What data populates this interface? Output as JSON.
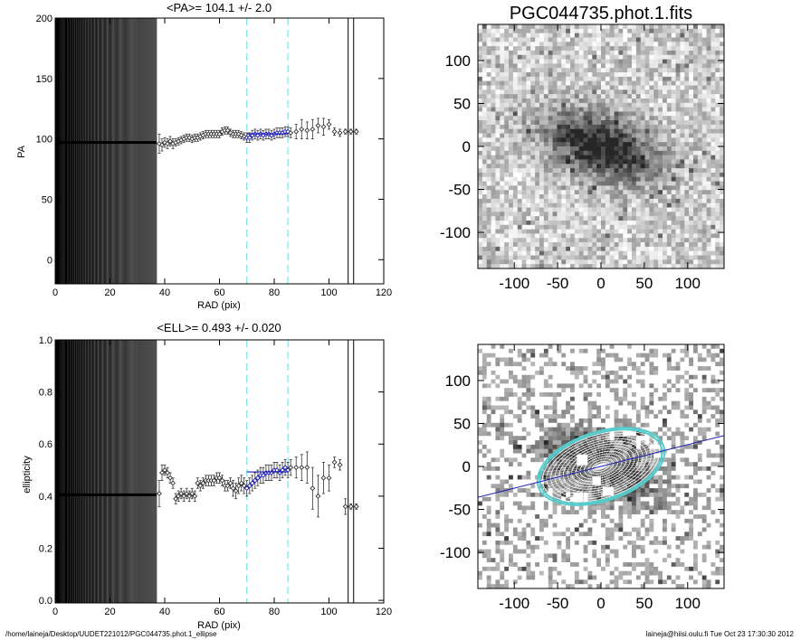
{
  "footer": {
    "path": "/home/laineja/Desktop/UUDET221012/PGC044735.phot.1_ellipse",
    "user_time": "laineja@hiisi.oulu.fi  Tue Oct 23 17:30:30 2012"
  },
  "colors": {
    "fit_line": "#1a1ab4",
    "fit_range": "#66dddd",
    "markers": "#555555",
    "ellipse_outer": "#55cccc"
  },
  "images": {
    "title": "PGC044735.phot.1.fits",
    "x_ticks": [
      -100,
      -50,
      0,
      50,
      100
    ],
    "y_ticks": [
      -100,
      -50,
      0,
      50,
      100
    ],
    "range": [
      -142,
      142
    ]
  },
  "chart_data": [
    {
      "type": "scatter",
      "title": "<PA>= 104.1 +/-   2.0",
      "xlabel": "RAD (pix)",
      "ylabel": "PA",
      "xlim": [
        0,
        120
      ],
      "ylim": [
        -20,
        200
      ],
      "x_ticks": [
        0,
        20,
        40,
        60,
        80,
        100,
        120
      ],
      "y_ticks": [
        0,
        50,
        100,
        150,
        200
      ],
      "fit_range": [
        70,
        85
      ],
      "mean_value": 104.1,
      "outer_lines": [
        107,
        109
      ],
      "inner_level": 97,
      "points": [
        {
          "x": 38,
          "y": 96,
          "e": 8
        },
        {
          "x": 39,
          "y": 95,
          "e": 5
        },
        {
          "x": 40,
          "y": 97,
          "e": 4
        },
        {
          "x": 41,
          "y": 96,
          "e": 4
        },
        {
          "x": 42,
          "y": 98,
          "e": 4
        },
        {
          "x": 43,
          "y": 96,
          "e": 4
        },
        {
          "x": 44,
          "y": 97,
          "e": 3
        },
        {
          "x": 45,
          "y": 98,
          "e": 3
        },
        {
          "x": 46,
          "y": 99,
          "e": 3
        },
        {
          "x": 47,
          "y": 100,
          "e": 3
        },
        {
          "x": 48,
          "y": 101,
          "e": 3
        },
        {
          "x": 49,
          "y": 101,
          "e": 3
        },
        {
          "x": 50,
          "y": 100,
          "e": 3
        },
        {
          "x": 51,
          "y": 101,
          "e": 3
        },
        {
          "x": 52,
          "y": 101,
          "e": 3
        },
        {
          "x": 53,
          "y": 102,
          "e": 3
        },
        {
          "x": 54,
          "y": 103,
          "e": 3
        },
        {
          "x": 55,
          "y": 104,
          "e": 3
        },
        {
          "x": 56,
          "y": 104,
          "e": 3
        },
        {
          "x": 57,
          "y": 104,
          "e": 3
        },
        {
          "x": 58,
          "y": 104,
          "e": 3
        },
        {
          "x": 59,
          "y": 104,
          "e": 3
        },
        {
          "x": 60,
          "y": 104,
          "e": 3
        },
        {
          "x": 61,
          "y": 106,
          "e": 3
        },
        {
          "x": 62,
          "y": 107,
          "e": 3
        },
        {
          "x": 63,
          "y": 107,
          "e": 3
        },
        {
          "x": 64,
          "y": 105,
          "e": 3
        },
        {
          "x": 65,
          "y": 104,
          "e": 3
        },
        {
          "x": 66,
          "y": 104,
          "e": 3
        },
        {
          "x": 67,
          "y": 104,
          "e": 3
        },
        {
          "x": 68,
          "y": 103,
          "e": 3
        },
        {
          "x": 69,
          "y": 102,
          "e": 3
        },
        {
          "x": 70,
          "y": 101,
          "e": 4
        },
        {
          "x": 71,
          "y": 101,
          "e": 4
        },
        {
          "x": 72,
          "y": 103,
          "e": 4
        },
        {
          "x": 73,
          "y": 104,
          "e": 4
        },
        {
          "x": 74,
          "y": 103,
          "e": 4
        },
        {
          "x": 75,
          "y": 104,
          "e": 4
        },
        {
          "x": 76,
          "y": 103,
          "e": 4
        },
        {
          "x": 77,
          "y": 104,
          "e": 4
        },
        {
          "x": 78,
          "y": 104,
          "e": 4
        },
        {
          "x": 79,
          "y": 103,
          "e": 4
        },
        {
          "x": 80,
          "y": 104,
          "e": 4
        },
        {
          "x": 81,
          "y": 105,
          "e": 4
        },
        {
          "x": 82,
          "y": 105,
          "e": 4
        },
        {
          "x": 83,
          "y": 105,
          "e": 4
        },
        {
          "x": 84,
          "y": 106,
          "e": 4
        },
        {
          "x": 85,
          "y": 106,
          "e": 4
        },
        {
          "x": 86,
          "y": 105,
          "e": 4
        },
        {
          "x": 88,
          "y": 106,
          "e": 6
        },
        {
          "x": 90,
          "y": 108,
          "e": 8
        },
        {
          "x": 92,
          "y": 107,
          "e": 7
        },
        {
          "x": 94,
          "y": 108,
          "e": 8
        },
        {
          "x": 96,
          "y": 111,
          "e": 6
        },
        {
          "x": 98,
          "y": 110,
          "e": 7
        },
        {
          "x": 100,
          "y": 112,
          "e": 4
        },
        {
          "x": 102,
          "y": 106,
          "e": 3
        },
        {
          "x": 104,
          "y": 105,
          "e": 3
        },
        {
          "x": 106,
          "y": 106,
          "e": 2
        },
        {
          "x": 108,
          "y": 106,
          "e": 2
        },
        {
          "x": 110,
          "y": 106,
          "e": 2
        }
      ]
    },
    {
      "type": "scatter",
      "title": "<ELL>= 0.493 +/-  0.020",
      "xlabel": "RAD (pix)",
      "ylabel": "ellipticity",
      "xlim": [
        0,
        120
      ],
      "ylim": [
        -0.01,
        1.0
      ],
      "x_ticks": [
        0,
        20,
        40,
        60,
        80,
        100,
        120
      ],
      "y_ticks": [
        0.0,
        0.2,
        0.4,
        0.6,
        0.8,
        1.0
      ],
      "fit_range": [
        70,
        85
      ],
      "mean_value": 0.493,
      "outer_lines": [
        107,
        109
      ],
      "inner_level": 0.405,
      "points": [
        {
          "x": 38,
          "y": 0.41,
          "e": 0.05
        },
        {
          "x": 39,
          "y": 0.49,
          "e": 0.03
        },
        {
          "x": 40,
          "y": 0.5,
          "e": 0.02
        },
        {
          "x": 41,
          "y": 0.49,
          "e": 0.02
        },
        {
          "x": 42,
          "y": 0.47,
          "e": 0.02
        },
        {
          "x": 43,
          "y": 0.45,
          "e": 0.02
        },
        {
          "x": 44,
          "y": 0.39,
          "e": 0.02
        },
        {
          "x": 45,
          "y": 0.4,
          "e": 0.02
        },
        {
          "x": 46,
          "y": 0.41,
          "e": 0.02
        },
        {
          "x": 47,
          "y": 0.4,
          "e": 0.02
        },
        {
          "x": 48,
          "y": 0.41,
          "e": 0.02
        },
        {
          "x": 49,
          "y": 0.4,
          "e": 0.02
        },
        {
          "x": 50,
          "y": 0.41,
          "e": 0.02
        },
        {
          "x": 51,
          "y": 0.4,
          "e": 0.02
        },
        {
          "x": 52,
          "y": 0.45,
          "e": 0.02
        },
        {
          "x": 53,
          "y": 0.44,
          "e": 0.02
        },
        {
          "x": 54,
          "y": 0.45,
          "e": 0.02
        },
        {
          "x": 55,
          "y": 0.46,
          "e": 0.02
        },
        {
          "x": 56,
          "y": 0.46,
          "e": 0.02
        },
        {
          "x": 57,
          "y": 0.46,
          "e": 0.02
        },
        {
          "x": 58,
          "y": 0.46,
          "e": 0.02
        },
        {
          "x": 59,
          "y": 0.47,
          "e": 0.02
        },
        {
          "x": 60,
          "y": 0.47,
          "e": 0.02
        },
        {
          "x": 61,
          "y": 0.46,
          "e": 0.02
        },
        {
          "x": 62,
          "y": 0.44,
          "e": 0.02
        },
        {
          "x": 63,
          "y": 0.44,
          "e": 0.02
        },
        {
          "x": 64,
          "y": 0.45,
          "e": 0.02
        },
        {
          "x": 65,
          "y": 0.43,
          "e": 0.03
        },
        {
          "x": 66,
          "y": 0.42,
          "e": 0.03
        },
        {
          "x": 67,
          "y": 0.44,
          "e": 0.03
        },
        {
          "x": 68,
          "y": 0.45,
          "e": 0.03
        },
        {
          "x": 69,
          "y": 0.44,
          "e": 0.03
        },
        {
          "x": 70,
          "y": 0.43,
          "e": 0.03
        },
        {
          "x": 71,
          "y": 0.44,
          "e": 0.03
        },
        {
          "x": 72,
          "y": 0.45,
          "e": 0.03
        },
        {
          "x": 73,
          "y": 0.46,
          "e": 0.03
        },
        {
          "x": 74,
          "y": 0.47,
          "e": 0.03
        },
        {
          "x": 75,
          "y": 0.48,
          "e": 0.03
        },
        {
          "x": 76,
          "y": 0.48,
          "e": 0.03
        },
        {
          "x": 77,
          "y": 0.49,
          "e": 0.03
        },
        {
          "x": 78,
          "y": 0.49,
          "e": 0.03
        },
        {
          "x": 79,
          "y": 0.49,
          "e": 0.03
        },
        {
          "x": 80,
          "y": 0.5,
          "e": 0.03
        },
        {
          "x": 81,
          "y": 0.5,
          "e": 0.03
        },
        {
          "x": 82,
          "y": 0.49,
          "e": 0.03
        },
        {
          "x": 83,
          "y": 0.5,
          "e": 0.03
        },
        {
          "x": 84,
          "y": 0.51,
          "e": 0.03
        },
        {
          "x": 85,
          "y": 0.5,
          "e": 0.03
        },
        {
          "x": 86,
          "y": 0.51,
          "e": 0.03
        },
        {
          "x": 88,
          "y": 0.51,
          "e": 0.04
        },
        {
          "x": 90,
          "y": 0.51,
          "e": 0.05
        },
        {
          "x": 92,
          "y": 0.51,
          "e": 0.06
        },
        {
          "x": 94,
          "y": 0.43,
          "e": 0.08
        },
        {
          "x": 96,
          "y": 0.4,
          "e": 0.08
        },
        {
          "x": 98,
          "y": 0.47,
          "e": 0.06
        },
        {
          "x": 100,
          "y": 0.47,
          "e": 0.05
        },
        {
          "x": 102,
          "y": 0.53,
          "e": 0.02
        },
        {
          "x": 104,
          "y": 0.52,
          "e": 0.02
        },
        {
          "x": 106,
          "y": 0.36,
          "e": 0.03
        },
        {
          "x": 108,
          "y": 0.36,
          "e": 0.01
        },
        {
          "x": 110,
          "y": 0.36,
          "e": 0.01
        }
      ]
    }
  ]
}
